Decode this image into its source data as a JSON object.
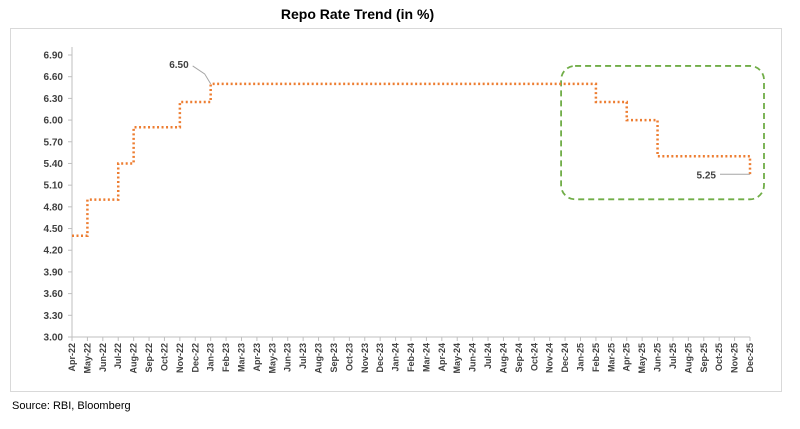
{
  "chart_data": {
    "type": "line",
    "title": "Repo Rate Trend (in %)",
    "xlabel": "",
    "ylabel": "",
    "ylim": [
      3.0,
      6.9
    ],
    "yticks": [
      "3.00",
      "3.30",
      "3.60",
      "3.90",
      "4.20",
      "4.50",
      "4.80",
      "5.10",
      "5.40",
      "5.70",
      "6.00",
      "6.30",
      "6.60",
      "6.90"
    ],
    "line_style": "step-dotted",
    "grid": false,
    "legend": "none",
    "colors": {
      "line": "#ed7d31",
      "highlight_box": "#70ad47",
      "axis": "#bfbfbf",
      "text": "#404040"
    },
    "categories": [
      "Apr-22",
      "May-22",
      "Jun-22",
      "Jul-22",
      "Aug-22",
      "Sep-22",
      "Oct-22",
      "Nov-22",
      "Dec-22",
      "Jan-23",
      "Feb-23",
      "Mar-23",
      "Apr-23",
      "May-23",
      "Jun-23",
      "Jul-23",
      "Aug-23",
      "Sep-23",
      "Oct-23",
      "Nov-23",
      "Dec-23",
      "Jan-24",
      "Feb-24",
      "Mar-24",
      "Apr-24",
      "May-24",
      "Jun-24",
      "Jul-24",
      "Aug-24",
      "Sep-24",
      "Oct-24",
      "Nov-24",
      "Dec-24",
      "Jan-25",
      "Feb-25",
      "Mar-25",
      "Apr-25",
      "May-25",
      "Jun-25",
      "Jul-25",
      "Aug-25",
      "Sep-25",
      "Oct-25",
      "Nov-25",
      "Dec-25"
    ],
    "series": [
      {
        "name": "",
        "values": [
          4.4,
          4.9,
          4.9,
          5.4,
          5.9,
          5.9,
          5.9,
          6.25,
          6.25,
          6.5,
          6.5,
          6.5,
          6.5,
          6.5,
          6.5,
          6.5,
          6.5,
          6.5,
          6.5,
          6.5,
          6.5,
          6.5,
          6.5,
          6.5,
          6.5,
          6.5,
          6.5,
          6.5,
          6.5,
          6.5,
          6.5,
          6.5,
          6.5,
          6.5,
          6.25,
          6.25,
          6.0,
          6.0,
          5.5,
          5.5,
          5.5,
          5.5,
          5.5,
          5.5,
          5.25
        ]
      }
    ],
    "annotations": [
      {
        "text": "6.50",
        "category": "Jan-23",
        "value": 6.5
      },
      {
        "text": "5.25",
        "category": "Dec-25",
        "value": 5.25
      }
    ],
    "highlight_range": [
      "Dec-24",
      "Dec-25"
    ]
  },
  "source": "Source: RBI, Bloomberg"
}
